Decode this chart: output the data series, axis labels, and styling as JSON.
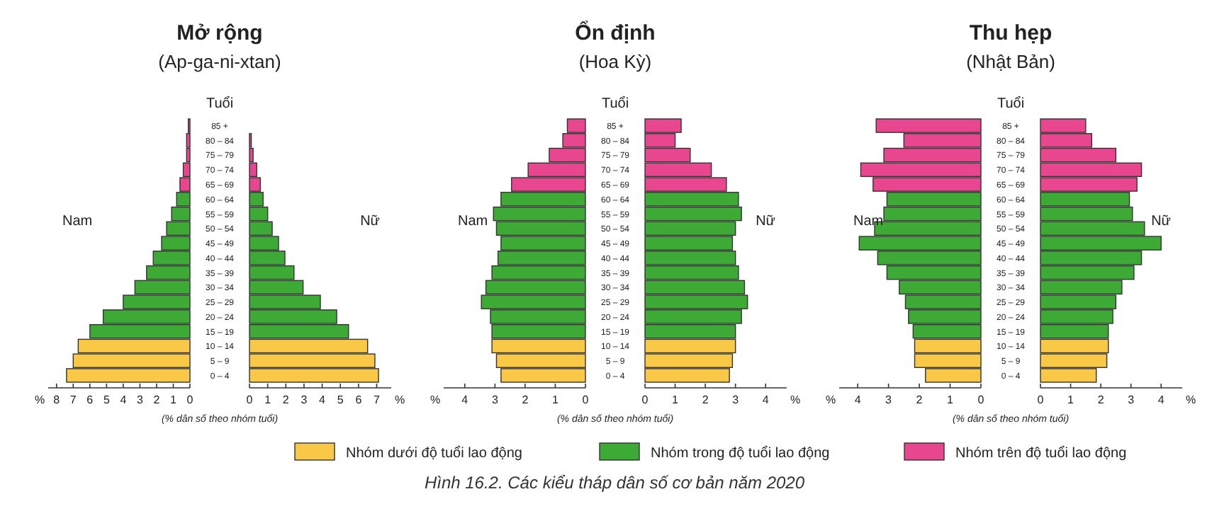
{
  "chart_data": [
    {
      "type": "bar",
      "orientation": "horizontal",
      "title": "Mở rộng",
      "subtitle": "(Ap-ga-ni-xtan)",
      "ylabel": "Tuổi",
      "xlabel": "(% dân số theo nhóm tuổi)",
      "annotations": [
        "Nam",
        "%",
        "Hình 16.2. Các kiểu tháp dân số cơ bản năm 2020"
      ],
      "legend": "bottom",
      "xlim": [
        8.5,
        0
      ],
      "xticks": [
        8,
        7,
        6,
        5,
        4,
        3,
        2,
        1,
        0
      ],
      "categories": [
        "85 +",
        "80 – 84",
        "75 – 79",
        "70 – 74",
        "65 – 69",
        "60 – 64",
        "55 – 59",
        "50 – 54",
        "45 – 49",
        "40 – 44",
        "35 – 39",
        "30 – 34",
        "25 – 29",
        "20 – 24",
        "15 – 19",
        "10 – 14",
        "5 – 9",
        "0 – 4"
      ],
      "series": [
        {
          "name": "Nhóm dưới độ tuổi lao động",
          "color": "#f9c846",
          "values": [
            null,
            null,
            null,
            null,
            null,
            null,
            null,
            null,
            null,
            null,
            null,
            null,
            null,
            null,
            null,
            6.7,
            7.0,
            7.4
          ]
        },
        {
          "name": "Nhóm trong độ tuổi lao động",
          "color": "#3daa35",
          "values": [
            null,
            null,
            null,
            null,
            null,
            0.8,
            1.1,
            1.4,
            1.7,
            2.2,
            2.6,
            3.3,
            4.0,
            5.2,
            6.0,
            null,
            null,
            null
          ]
        },
        {
          "name": "Nhóm trên độ tuổi lao động",
          "color": "#e8468f",
          "values": [
            0.1,
            0.2,
            0.2,
            0.4,
            0.6,
            null,
            null,
            null,
            null,
            null,
            null,
            null,
            null,
            null,
            null,
            null,
            null,
            null
          ]
        }
      ]
    },
    {
      "type": "bar",
      "orientation": "horizontal",
      "annotations": [
        "Nữ",
        "%"
      ],
      "tick_labels": "x",
      "xlim": [
        0,
        7.8
      ],
      "xticks": [
        0,
        1,
        2,
        3,
        4,
        5,
        6,
        7
      ],
      "categories": [
        null,
        null,
        null,
        null,
        null,
        null,
        null,
        null,
        null,
        null,
        null,
        null,
        null,
        null,
        null,
        null,
        null,
        null
      ],
      "series": [
        {
          "color": "#f9c846",
          "values": [
            null,
            null,
            null,
            null,
            null,
            null,
            null,
            null,
            null,
            null,
            null,
            null,
            null,
            null,
            null,
            6.5,
            6.9,
            7.1
          ]
        },
        {
          "color": "#3daa35",
          "values": [
            null,
            null,
            null,
            null,
            null,
            0.75,
            1.0,
            1.25,
            1.6,
            1.95,
            2.45,
            2.95,
            3.9,
            4.8,
            5.45,
            null,
            null,
            null
          ]
        },
        {
          "color": "#e8468f",
          "values": [
            null,
            0.1,
            0.2,
            0.4,
            0.6,
            null,
            null,
            null,
            null,
            null,
            null,
            null,
            null,
            null,
            null,
            null,
            null,
            null
          ]
        }
      ]
    },
    {
      "type": "bar",
      "orientation": "horizontal",
      "title": "Ổn định",
      "subtitle": "(Hoa Kỳ)",
      "ylabel": "Tuổi",
      "xlabel": "(% dân số theo nhóm tuổi)",
      "annotations": [
        "Nam",
        "%"
      ],
      "xlim": [
        4.7,
        0
      ],
      "xticks": [
        4,
        3,
        2,
        1,
        0
      ],
      "categories": [
        "85 +",
        "80 – 84",
        "75 – 79",
        "70 – 74",
        "65 – 69",
        "60 – 64",
        "55 – 59",
        "50 – 54",
        "45 – 49",
        "40 – 44",
        "35 – 39",
        "30 – 34",
        "25 – 29",
        "20 – 24",
        "15 – 19",
        "10 – 14",
        "5 – 9",
        "0 – 4"
      ],
      "series": [
        {
          "color": "#f9c846",
          "values": [
            null,
            null,
            null,
            null,
            null,
            null,
            null,
            null,
            null,
            null,
            null,
            null,
            null,
            null,
            null,
            3.1,
            2.95,
            2.8
          ]
        },
        {
          "color": "#3daa35",
          "values": [
            null,
            null,
            null,
            null,
            null,
            2.8,
            3.05,
            2.95,
            2.8,
            2.9,
            3.1,
            3.3,
            3.45,
            3.15,
            3.1,
            null,
            null,
            null
          ]
        },
        {
          "color": "#e8468f",
          "values": [
            0.6,
            0.75,
            1.2,
            1.9,
            2.45,
            null,
            null,
            null,
            null,
            null,
            null,
            null,
            null,
            null,
            null,
            null,
            null,
            null
          ]
        }
      ]
    },
    {
      "type": "bar",
      "orientation": "horizontal",
      "annotations": [
        "Nữ",
        "%"
      ],
      "tick_labels": "x",
      "xlim": [
        0,
        4.7
      ],
      "xticks": [
        0,
        1,
        2,
        3,
        4
      ],
      "categories": [
        null,
        null,
        null,
        null,
        null,
        null,
        null,
        null,
        null,
        null,
        null,
        null,
        null,
        null,
        null,
        null,
        null,
        null
      ],
      "series": [
        {
          "color": "#f9c846",
          "values": [
            null,
            null,
            null,
            null,
            null,
            null,
            null,
            null,
            null,
            null,
            null,
            null,
            null,
            null,
            null,
            3.0,
            2.9,
            2.8
          ]
        },
        {
          "color": "#3daa35",
          "values": [
            null,
            null,
            null,
            null,
            null,
            3.1,
            3.2,
            3.0,
            2.9,
            3.0,
            3.1,
            3.3,
            3.4,
            3.2,
            3.0,
            null,
            null,
            null
          ]
        },
        {
          "color": "#e8468f",
          "values": [
            1.2,
            1.0,
            1.5,
            2.2,
            2.7,
            null,
            null,
            null,
            null,
            null,
            null,
            null,
            null,
            null,
            null,
            null,
            null,
            null
          ]
        }
      ]
    },
    {
      "type": "bar",
      "orientation": "horizontal",
      "title": "Thu hẹp",
      "subtitle": "(Nhật Bản)",
      "ylabel": "Tuổi",
      "xlabel": "(% dân số theo nhóm tuổi)",
      "annotations": [
        "Nam",
        "%"
      ],
      "xlim": [
        4.6,
        0
      ],
      "xticks": [
        4,
        3,
        2,
        1,
        0
      ],
      "categories": [
        "85 +",
        "80 – 84",
        "75 – 79",
        "70 – 74",
        "65 – 69",
        "60 – 64",
        "55 – 59",
        "50 – 54",
        "45 – 49",
        "40 – 44",
        "35 – 39",
        "30 – 34",
        "25 – 29",
        "20 – 24",
        "15 – 19",
        "10 – 14",
        "5 – 9",
        "0 – 4"
      ],
      "series": [
        {
          "color": "#f9c846",
          "values": [
            null,
            null,
            null,
            null,
            null,
            null,
            null,
            null,
            null,
            null,
            null,
            null,
            null,
            null,
            null,
            2.15,
            2.15,
            1.8
          ]
        },
        {
          "color": "#3daa35",
          "values": [
            null,
            null,
            null,
            null,
            null,
            3.05,
            3.15,
            3.45,
            3.95,
            3.35,
            3.05,
            2.65,
            2.45,
            2.35,
            2.2,
            null,
            null,
            null
          ]
        },
        {
          "color": "#e8468f",
          "values": [
            3.4,
            2.5,
            3.15,
            3.9,
            3.5,
            null,
            null,
            null,
            null,
            null,
            null,
            null,
            null,
            null,
            null,
            null,
            null,
            null
          ]
        }
      ]
    },
    {
      "type": "bar",
      "orientation": "horizontal",
      "annotations": [
        "Nữ",
        "%"
      ],
      "tick_labels": "x",
      "xlim": [
        0,
        4.7
      ],
      "xticks": [
        0,
        1,
        2,
        3,
        4
      ],
      "categories": [
        null,
        null,
        null,
        null,
        null,
        null,
        null,
        null,
        null,
        null,
        null,
        null,
        null,
        null,
        null,
        null,
        null,
        null
      ],
      "series": [
        {
          "color": "#f9c846",
          "values": [
            null,
            null,
            null,
            null,
            null,
            null,
            null,
            null,
            null,
            null,
            null,
            null,
            null,
            null,
            null,
            2.25,
            2.2,
            1.85
          ]
        },
        {
          "color": "#3daa35",
          "values": [
            null,
            null,
            null,
            null,
            null,
            2.95,
            3.05,
            3.45,
            4.0,
            3.35,
            3.1,
            2.7,
            2.5,
            2.4,
            2.25,
            null,
            null,
            null
          ]
        },
        {
          "color": "#e8468f",
          "values": [
            1.5,
            1.7,
            2.5,
            3.35,
            3.2,
            null,
            null,
            null,
            null,
            null,
            null,
            null,
            null,
            null,
            null,
            null,
            null,
            null
          ]
        }
      ]
    }
  ]
}
